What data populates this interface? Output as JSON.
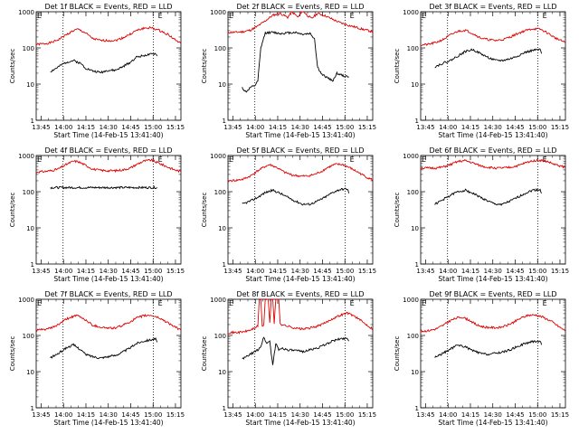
{
  "figure": {
    "start_time_label": "Start Time (14-Feb-15 13:41:40)",
    "y_axis_label": "Counts/sec",
    "time_ticks": [
      "13:45",
      "14:00",
      "14:15",
      "14:30",
      "14:45",
      "15:00",
      "15:15"
    ],
    "y_ticks": [
      "1",
      "10",
      "100",
      "1000"
    ],
    "marker_letter": "E",
    "colors": {
      "events": "#000000",
      "lld": "#e00000",
      "axes": "#000000",
      "background": "#ffffff"
    }
  },
  "chart_data": [
    {
      "type": "line",
      "title": "Det 1f BLACK = Events, RED = LLD",
      "xlabel": "Start Time (14-Feb-15 13:41:40)",
      "ylabel": "Counts/sec",
      "x_unit": "minutes after 13:41:40",
      "xlim": [
        0,
        97
      ],
      "ylim": [
        1,
        1000
      ],
      "y_scale": "log",
      "dotted_lines_x": [
        18,
        78.5
      ],
      "marker_E_x": [
        0,
        81
      ],
      "series": [
        {
          "name": "Events",
          "color": "#000000",
          "x": [
            9.5,
            15,
            20,
            25,
            30,
            33,
            38,
            43,
            48,
            53,
            58,
            63,
            67,
            72,
            76,
            80,
            81
          ],
          "y": [
            22,
            30,
            40,
            45,
            37,
            28,
            23,
            21,
            24,
            24,
            30,
            40,
            55,
            62,
            65,
            70,
            60
          ]
        },
        {
          "name": "LLD",
          "color": "#e00000",
          "x": [
            0,
            5,
            10,
            15,
            20,
            25,
            28,
            33,
            38,
            43,
            48,
            53,
            58,
            63,
            67,
            72,
            77,
            82,
            88,
            93,
            97
          ],
          "y": [
            125,
            130,
            140,
            170,
            230,
            300,
            330,
            260,
            180,
            160,
            160,
            160,
            190,
            240,
            300,
            350,
            360,
            310,
            240,
            170,
            130
          ]
        }
      ]
    },
    {
      "type": "line",
      "title": "Det 2f BLACK = Events, RED = LLD",
      "xlabel": "Start Time (14-Feb-15 13:41:40)",
      "ylabel": "Counts/sec",
      "x_unit": "minutes after 13:41:40",
      "xlim": [
        0,
        97
      ],
      "ylim": [
        1,
        1000
      ],
      "y_scale": "log",
      "dotted_lines_x": [
        18,
        78.5
      ],
      "marker_E_x": [
        0,
        81
      ],
      "series": [
        {
          "name": "Events",
          "color": "#000000",
          "x": [
            9.5,
            12,
            15,
            18,
            20,
            22,
            25,
            30,
            35,
            40,
            45,
            50,
            55,
            58,
            60,
            63,
            67,
            70,
            73,
            77,
            81
          ],
          "y": [
            8,
            6,
            8,
            9,
            12,
            100,
            260,
            270,
            250,
            260,
            270,
            240,
            250,
            180,
            30,
            18,
            15,
            12,
            20,
            17,
            16
          ]
        },
        {
          "name": "LLD",
          "color": "#e00000",
          "x": [
            0,
            5,
            10,
            15,
            20,
            25,
            30,
            35,
            40,
            43,
            47,
            50,
            53,
            56,
            60,
            65,
            70,
            75,
            80,
            85,
            90,
            97
          ],
          "y": [
            270,
            270,
            280,
            310,
            400,
            560,
            800,
            900,
            700,
            1000,
            700,
            1100,
            800,
            650,
            900,
            780,
            620,
            500,
            430,
            380,
            330,
            280
          ]
        }
      ]
    },
    {
      "type": "line",
      "title": "Det 3f BLACK = Events, RED = LLD",
      "xlabel": "Start Time (14-Feb-15 13:41:40)",
      "ylabel": "Counts/sec",
      "x_unit": "minutes after 13:41:40",
      "xlim": [
        0,
        97
      ],
      "ylim": [
        1,
        1000
      ],
      "y_scale": "log",
      "dotted_lines_x": [
        18,
        78.5
      ],
      "marker_E_x": [
        0,
        81
      ],
      "series": [
        {
          "name": "Events",
          "color": "#000000",
          "x": [
            9.5,
            15,
            20,
            25,
            30,
            35,
            40,
            45,
            50,
            55,
            60,
            65,
            70,
            75,
            80,
            81
          ],
          "y": [
            30,
            38,
            45,
            60,
            80,
            90,
            70,
            55,
            45,
            45,
            50,
            60,
            75,
            85,
            90,
            70
          ]
        },
        {
          "name": "LLD",
          "color": "#e00000",
          "x": [
            0,
            5,
            10,
            15,
            20,
            25,
            30,
            35,
            40,
            45,
            50,
            55,
            60,
            65,
            70,
            75,
            80,
            85,
            90,
            97
          ],
          "y": [
            120,
            125,
            140,
            170,
            230,
            290,
            310,
            250,
            190,
            170,
            160,
            170,
            200,
            250,
            300,
            340,
            330,
            260,
            190,
            140
          ]
        }
      ]
    },
    {
      "type": "line",
      "title": "Det 4f BLACK = Events, RED = LLD",
      "xlabel": "Start Time (14-Feb-15 13:41:40)",
      "ylabel": "Counts/sec",
      "x_unit": "minutes after 13:41:40",
      "xlim": [
        0,
        97
      ],
      "ylim": [
        1,
        1000
      ],
      "y_scale": "log",
      "dotted_lines_x": [
        18,
        78.5
      ],
      "marker_E_x": [
        0,
        81
      ],
      "series": [
        {
          "name": "Events",
          "color": "#000000",
          "x": [
            9.5,
            20,
            30,
            40,
            50,
            60,
            70,
            81
          ],
          "y": [
            130,
            130,
            130,
            130,
            130,
            130,
            130,
            130
          ]
        },
        {
          "name": "LLD",
          "color": "#e00000",
          "x": [
            0,
            5,
            10,
            15,
            20,
            25,
            28,
            33,
            38,
            43,
            48,
            53,
            58,
            63,
            67,
            72,
            77,
            82,
            88,
            93,
            97
          ],
          "y": [
            350,
            360,
            380,
            430,
            560,
            700,
            680,
            540,
            420,
            390,
            380,
            380,
            400,
            450,
            560,
            700,
            750,
            620,
            480,
            400,
            360
          ]
        }
      ]
    },
    {
      "type": "line",
      "title": "Det 5f BLACK = Events, RED = LLD",
      "xlabel": "Start Time (14-Feb-15 13:41:40)",
      "ylabel": "Counts/sec",
      "x_unit": "minutes after 13:41:40",
      "xlim": [
        0,
        97
      ],
      "ylim": [
        1,
        1000
      ],
      "y_scale": "log",
      "dotted_lines_x": [
        18,
        78.5
      ],
      "marker_E_x": [
        0,
        81
      ],
      "series": [
        {
          "name": "Events",
          "color": "#000000",
          "x": [
            9.5,
            15,
            20,
            25,
            30,
            35,
            40,
            45,
            50,
            55,
            60,
            65,
            70,
            75,
            80,
            81
          ],
          "y": [
            45,
            55,
            70,
            95,
            110,
            90,
            70,
            55,
            45,
            45,
            55,
            70,
            95,
            115,
            120,
            90
          ]
        },
        {
          "name": "LLD",
          "color": "#e00000",
          "x": [
            0,
            5,
            10,
            15,
            20,
            25,
            28,
            33,
            38,
            43,
            48,
            53,
            58,
            63,
            67,
            72,
            77,
            82,
            88,
            93,
            97
          ],
          "y": [
            200,
            205,
            220,
            270,
            380,
            500,
            560,
            460,
            340,
            290,
            270,
            270,
            300,
            370,
            470,
            570,
            560,
            450,
            330,
            250,
            210
          ]
        }
      ]
    },
    {
      "type": "line",
      "title": "Det 6f BLACK = Events, RED = LLD",
      "xlabel": "Start Time (14-Feb-15 13:41:40)",
      "ylabel": "Counts/sec",
      "x_unit": "minutes after 13:41:40",
      "xlim": [
        0,
        97
      ],
      "ylim": [
        1,
        1000
      ],
      "y_scale": "log",
      "dotted_lines_x": [
        18,
        78.5
      ],
      "marker_E_x": [
        0,
        81
      ],
      "series": [
        {
          "name": "Events",
          "color": "#000000",
          "x": [
            9.5,
            15,
            20,
            25,
            30,
            35,
            40,
            45,
            50,
            55,
            60,
            65,
            70,
            75,
            80,
            81
          ],
          "y": [
            45,
            60,
            80,
            100,
            110,
            90,
            70,
            55,
            45,
            45,
            55,
            70,
            90,
            110,
            115,
            90
          ]
        },
        {
          "name": "LLD",
          "color": "#e00000",
          "x": [
            0,
            10,
            15,
            20,
            25,
            30,
            35,
            40,
            45,
            50,
            55,
            60,
            65,
            70,
            75,
            80,
            85,
            90,
            97
          ],
          "y": [
            450,
            450,
            480,
            560,
            680,
            720,
            620,
            520,
            470,
            450,
            450,
            470,
            520,
            620,
            720,
            740,
            680,
            560,
            470
          ]
        }
      ]
    },
    {
      "type": "line",
      "title": "Det 7f BLACK = Events, RED = LLD",
      "xlabel": "Start Time (14-Feb-15 13:41:40)",
      "ylabel": "Counts/sec",
      "x_unit": "minutes after 13:41:40",
      "xlim": [
        0,
        97
      ],
      "ylim": [
        1,
        1000
      ],
      "y_scale": "log",
      "dotted_lines_x": [
        18,
        78.5
      ],
      "marker_E_x": [
        0,
        81
      ],
      "series": [
        {
          "name": "Events",
          "color": "#000000",
          "x": [
            9.5,
            15,
            20,
            25,
            30,
            33,
            38,
            43,
            48,
            53,
            58,
            63,
            67,
            72,
            76,
            80,
            81
          ],
          "y": [
            24,
            32,
            45,
            55,
            40,
            30,
            26,
            24,
            26,
            28,
            35,
            45,
            60,
            70,
            75,
            80,
            65
          ]
        },
        {
          "name": "LLD",
          "color": "#e00000",
          "x": [
            0,
            5,
            10,
            15,
            20,
            25,
            28,
            33,
            38,
            43,
            48,
            53,
            58,
            63,
            67,
            72,
            77,
            82,
            88,
            93,
            97
          ],
          "y": [
            140,
            145,
            160,
            200,
            280,
            340,
            350,
            270,
            190,
            170,
            160,
            160,
            190,
            240,
            300,
            350,
            360,
            310,
            230,
            170,
            140
          ]
        }
      ]
    },
    {
      "type": "line",
      "title": "Det 8f BLACK = Events, RED = LLD",
      "xlabel": "Start Time (14-Feb-15 13:41:40)",
      "ylabel": "Counts/sec",
      "x_unit": "minutes after 13:41:40",
      "xlim": [
        0,
        97
      ],
      "ylim": [
        1,
        1000
      ],
      "y_scale": "log",
      "dotted_lines_x": [
        18,
        78.5
      ],
      "marker_E_x": [
        0,
        81
      ],
      "series": [
        {
          "name": "Events",
          "color": "#000000",
          "x": [
            9.5,
            15,
            20,
            22,
            24,
            26,
            28,
            30,
            32,
            34,
            36,
            40,
            45,
            50,
            55,
            60,
            65,
            70,
            75,
            80,
            81
          ],
          "y": [
            22,
            30,
            40,
            50,
            90,
            60,
            70,
            15,
            60,
            40,
            45,
            40,
            38,
            36,
            40,
            45,
            55,
            70,
            80,
            85,
            70
          ]
        },
        {
          "name": "LLD",
          "color": "#e00000",
          "x": [
            0,
            5,
            10,
            15,
            20,
            21,
            22,
            23,
            24,
            25,
            26,
            27,
            28,
            29,
            30,
            31,
            32,
            33,
            34,
            35,
            36,
            40,
            45,
            50,
            55,
            60,
            65,
            70,
            75,
            80,
            85,
            90,
            97
          ],
          "y": [
            120,
            120,
            125,
            140,
            180,
            1000,
            1000,
            180,
            200,
            1000,
            1000,
            1000,
            210,
            1000,
            1000,
            220,
            1000,
            1000,
            1000,
            220,
            200,
            180,
            160,
            150,
            160,
            180,
            220,
            290,
            360,
            420,
            340,
            240,
            150
          ]
        }
      ]
    },
    {
      "type": "line",
      "title": "Det 9f BLACK = Events, RED = LLD",
      "xlabel": "Start Time (14-Feb-15 13:41:40)",
      "ylabel": "Counts/sec",
      "x_unit": "minutes after 13:41:40",
      "xlim": [
        0,
        97
      ],
      "ylim": [
        1,
        1000
      ],
      "y_scale": "log",
      "dotted_lines_x": [
        18,
        78.5
      ],
      "marker_E_x": [
        0,
        81
      ],
      "series": [
        {
          "name": "Events",
          "color": "#000000",
          "x": [
            9.5,
            15,
            20,
            25,
            30,
            35,
            40,
            45,
            50,
            55,
            60,
            65,
            70,
            75,
            80,
            81
          ],
          "y": [
            25,
            32,
            42,
            55,
            48,
            38,
            32,
            30,
            32,
            35,
            40,
            50,
            60,
            68,
            70,
            55
          ]
        },
        {
          "name": "LLD",
          "color": "#e00000",
          "x": [
            0,
            5,
            10,
            15,
            20,
            25,
            28,
            33,
            38,
            43,
            48,
            53,
            58,
            63,
            67,
            72,
            77,
            82,
            88,
            93,
            97
          ],
          "y": [
            130,
            135,
            150,
            190,
            260,
            310,
            320,
            260,
            190,
            170,
            165,
            165,
            190,
            240,
            300,
            360,
            370,
            320,
            240,
            170,
            135
          ]
        }
      ]
    }
  ]
}
